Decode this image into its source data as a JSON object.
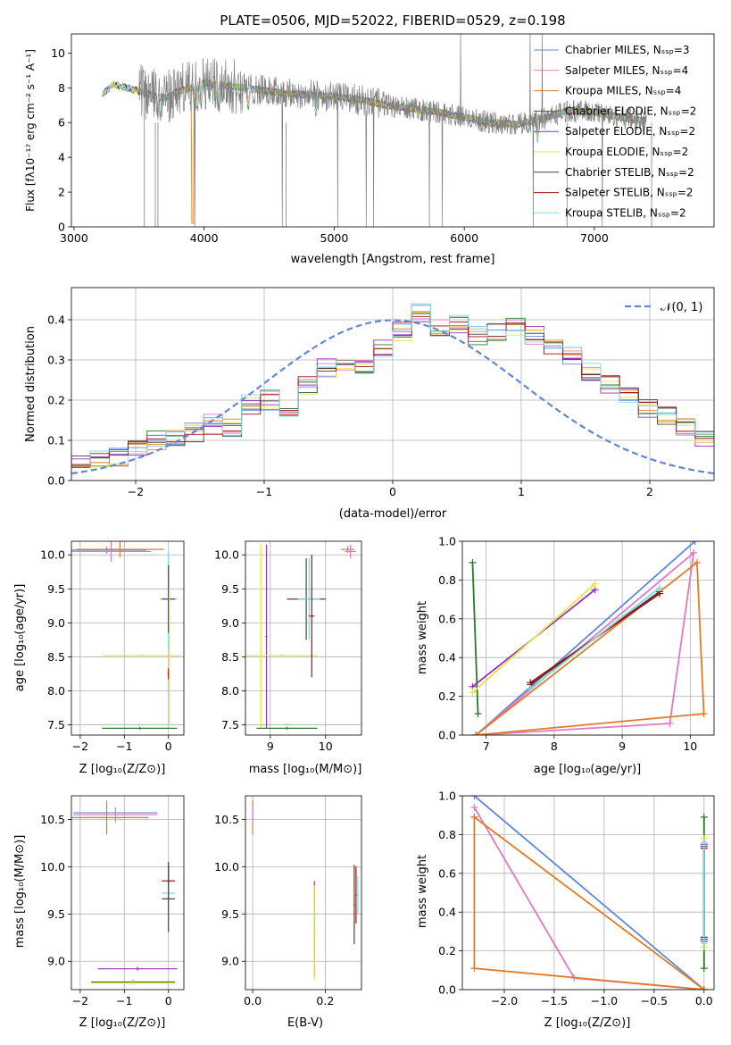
{
  "colors": [
    "#5f87d9",
    "#e377c2",
    "#e07b25",
    "#2a7a2a",
    "#9a2fbf",
    "#e6e640",
    "#444444",
    "#a50f0f",
    "#80d8e0"
  ],
  "spectrum": {
    "title": "PLATE=0506, MJD=52022, FIBERID=0529, z=0.198",
    "xlabel": "wavelength [Angstrom, rest frame]",
    "ylabel": "Flux [fλ10⁻¹⁷ erg cm⁻² s⁻¹ A⁻¹]",
    "xticks": [
      "3000",
      "4000",
      "5000",
      "6000",
      "7000"
    ],
    "yticks": [
      "0",
      "2",
      "4",
      "6",
      "8",
      "10"
    ],
    "legend": [
      "Chabrier MILES, Nₛₛₚ=3",
      "Salpeter MILES, Nₛₛₚ=4",
      "Kroupa MILES, Nₛₛₚ=4",
      "Chabrier ELODIE, Nₛₛₚ=2",
      "Salpeter ELODIE, Nₛₛₚ=2",
      "Kroupa ELODIE, Nₛₛₚ=2",
      "Chabrier STELIB, Nₛₛₚ=2",
      "Salpeter STELIB, Nₛₛₚ=2",
      "Kroupa STELIB, Nₛₛₚ=2"
    ]
  },
  "histogram": {
    "xlabel": "(data-model)/error",
    "ylabel": "Normed distribution",
    "xticks": [
      "−2",
      "−1",
      "0",
      "1",
      "2"
    ],
    "yticks": [
      "0.0",
      "0.1",
      "0.2",
      "0.3",
      "0.4"
    ],
    "legend": "𝒩(0, 1)"
  },
  "age_z": {
    "ylabel": "age  [log₁₀(age/yr)]",
    "xlabel": "Z [log₁₀(Z/Z⊙)]",
    "xticks": [
      "−2",
      "−1",
      "0"
    ],
    "yticks": [
      "7.5",
      "8.0",
      "8.5",
      "9.0",
      "9.5",
      "10.0"
    ]
  },
  "age_mass": {
    "xlabel": "mass [log₁₀(M/M⊙)]",
    "xticks": [
      "9",
      "10"
    ],
    "yticks": [
      "7.5",
      "8.0",
      "8.5",
      "9.0",
      "9.5",
      "10.0"
    ]
  },
  "mw_age": {
    "xlabel": "age  [log₁₀(age/yr)]",
    "ylabel": "mass weight",
    "xticks": [
      "7",
      "8",
      "9",
      "10"
    ],
    "yticks": [
      "0.0",
      "0.2",
      "0.4",
      "0.6",
      "0.8",
      "1.0"
    ]
  },
  "mass_z": {
    "ylabel": "mass [log₁₀(M/M⊙)]",
    "xlabel": "Z [log₁₀(Z/Z⊙)]",
    "xticks": [
      "−2",
      "−1",
      "0"
    ],
    "yticks": [
      "9.0",
      "9.5",
      "10.0",
      "10.5"
    ]
  },
  "mass_ebv": {
    "xlabel": "E(B-V)",
    "xticks": [
      "0.0",
      "0.2"
    ],
    "yticks": [
      "9.0",
      "9.5",
      "10.0",
      "10.5"
    ]
  },
  "mw_z": {
    "xlabel": "Z [log₁₀(Z/Z⊙)]",
    "ylabel": "mass weight",
    "xticks": [
      "−2.0",
      "−1.5",
      "−1.0",
      "−0.5",
      "0.0"
    ],
    "yticks": [
      "0.0",
      "0.2",
      "0.4",
      "0.6",
      "0.8",
      "1.0"
    ]
  },
  "chart_data": [
    {
      "type": "line",
      "title": "PLATE=0506, MJD=52022, FIBERID=0529, z=0.198",
      "xlabel": "wavelength [Angstrom, rest frame]",
      "ylabel": "Flux [fλ10⁻¹⁷ erg cm⁻² s⁻¹ A⁻¹]",
      "xlim": [
        2980,
        7920
      ],
      "ylim": [
        0,
        11.1
      ],
      "continuum_knots": {
        "x": [
          3220,
          3300,
          3400,
          3500,
          3600,
          3700,
          3800,
          3900,
          4000,
          4100,
          4200,
          4400,
          4600,
          4800,
          5000,
          5200,
          5400,
          5600,
          5800,
          6000,
          6200,
          6400,
          6600,
          6800,
          7000,
          7200,
          7400
        ],
        "y": [
          7.6,
          8.2,
          8.0,
          7.8,
          7.6,
          7.4,
          7.8,
          8.0,
          8.3,
          8.2,
          8.1,
          7.9,
          7.7,
          7.6,
          7.5,
          7.3,
          7.0,
          6.8,
          6.6,
          6.3,
          6.0,
          5.9,
          6.2,
          6.7,
          6.6,
          6.3,
          6.1
        ]
      },
      "series": [
        {
          "name": "Chabrier MILES, Nₛₛₚ=3"
        },
        {
          "name": "Salpeter MILES, Nₛₛₚ=4"
        },
        {
          "name": "Kroupa MILES, Nₛₛₚ=4"
        },
        {
          "name": "Chabrier ELODIE, Nₛₛₚ=2"
        },
        {
          "name": "Salpeter ELODIE, Nₛₛₚ=2"
        },
        {
          "name": "Kroupa ELODIE, Nₛₛₚ=2"
        },
        {
          "name": "Chabrier STELIB, Nₛₛₚ=2"
        },
        {
          "name": "Salpeter STELIB, Nₛₛₚ=2"
        },
        {
          "name": "Kroupa STELIB, Nₛₛₚ=2"
        }
      ]
    },
    {
      "type": "histogram",
      "xlabel": "(data-model)/error",
      "ylabel": "Normed distribution",
      "xlim": [
        -2.5,
        2.5
      ],
      "ylim": [
        0,
        0.48
      ],
      "bin_edges_range": [
        -2.5,
        2.5
      ],
      "n_bins": 34,
      "values": [
        0.04,
        0.05,
        0.06,
        0.08,
        0.1,
        0.11,
        0.12,
        0.14,
        0.13,
        0.19,
        0.2,
        0.17,
        0.24,
        0.28,
        0.3,
        0.29,
        0.33,
        0.37,
        0.42,
        0.38,
        0.39,
        0.36,
        0.37,
        0.38,
        0.36,
        0.34,
        0.31,
        0.27,
        0.24,
        0.21,
        0.18,
        0.16,
        0.13,
        0.11
      ],
      "reference": {
        "name": "𝒩(0, 1)",
        "type": "gaussian",
        "mu": 0,
        "sigma": 1
      }
    },
    {
      "type": "scatter",
      "xlabel": "Z [log₁₀(Z/Z⊙)]",
      "ylabel": "age  [log₁₀(age/yr)]",
      "xlim": [
        -2.2,
        0.35
      ],
      "ylim": [
        7.35,
        10.2
      ],
      "errorbars": [
        {
          "c": 0,
          "x": -1.4,
          "y": 10.07,
          "xerr": 0.9,
          "yerr": 0.05
        },
        {
          "c": 1,
          "x": -1.3,
          "y": 10.05,
          "xerr": 0.9,
          "yerr": 0.15
        },
        {
          "c": 2,
          "x": -1.1,
          "y": 10.08,
          "xerr": 1.0,
          "yerr": 0.12
        },
        {
          "c": 5,
          "x": -0.6,
          "y": 8.52,
          "xerr": 0.9,
          "yerr": 0.02
        },
        {
          "c": 3,
          "x": -0.65,
          "y": 7.45,
          "xerr": 0.85,
          "yerr": 0.02
        },
        {
          "c": 7,
          "x": 0.0,
          "y": 8.25,
          "xerr": 0.02,
          "yerr": 0.08
        },
        {
          "c": 8,
          "x": 0.0,
          "y": 9.35,
          "xerr": 0.2,
          "yerr": 0.7
        },
        {
          "c": 6,
          "x": 0.0,
          "y": 9.35,
          "xerr": 0.15,
          "yerr": 0.5
        },
        {
          "c": 5,
          "x": 0.02,
          "y": 8.52,
          "xerr": 0.02,
          "yerr": 1.0
        }
      ]
    },
    {
      "type": "scatter",
      "xlabel": "mass [log₁₀(M/M⊙)]",
      "xlim": [
        8.55,
        10.65
      ],
      "ylim": [
        7.35,
        10.2
      ],
      "errorbars": [
        {
          "c": 5,
          "x": 8.83,
          "y": 8.8,
          "xerr": 0.02,
          "yerr": 1.35
        },
        {
          "c": 4,
          "x": 8.93,
          "y": 8.8,
          "xerr": 0.02,
          "yerr": 1.35
        },
        {
          "c": 5,
          "x": 9.2,
          "y": 8.52,
          "xerr": 0.65,
          "yerr": 0.02
        },
        {
          "c": 3,
          "x": 9.3,
          "y": 7.45,
          "xerr": 0.55,
          "yerr": 0.02
        },
        {
          "c": 6,
          "x": 9.65,
          "y": 9.35,
          "xerr": 0.35,
          "yerr": 0.6
        },
        {
          "c": 8,
          "x": 9.7,
          "y": 9.35,
          "xerr": 0.2,
          "yerr": 0.6
        },
        {
          "c": 7,
          "x": 9.75,
          "y": 9.1,
          "xerr": 0.05,
          "yerr": 0.9
        },
        {
          "c": 2,
          "x": 10.4,
          "y": 10.08,
          "xerr": 0.12,
          "yerr": 0.05
        },
        {
          "c": 1,
          "x": 10.45,
          "y": 10.05,
          "xerr": 0.1,
          "yerr": 0.1
        }
      ]
    },
    {
      "type": "line",
      "xlabel": "age  [log₁₀(age/yr)]",
      "ylabel": "mass weight",
      "xlim": [
        6.65,
        10.35
      ],
      "ylim": [
        0,
        1.0
      ],
      "series": [
        {
          "c": 0,
          "x": [
            6.85,
            10.07
          ],
          "y": [
            0.0,
            1.0
          ]
        },
        {
          "c": 1,
          "x": [
            6.85,
            9.7,
            10.05,
            6.85
          ],
          "y": [
            0.0,
            0.06,
            0.94,
            0.0
          ]
        },
        {
          "c": 2,
          "x": [
            6.85,
            10.1,
            10.2,
            6.85
          ],
          "y": [
            0.0,
            0.89,
            0.11,
            0.0
          ]
        },
        {
          "c": 3,
          "x": [
            6.8,
            6.88
          ],
          "y": [
            0.89,
            0.11
          ]
        },
        {
          "c": 4,
          "x": [
            6.8,
            8.6
          ],
          "y": [
            0.25,
            0.75
          ]
        },
        {
          "c": 5,
          "x": [
            6.8,
            8.6
          ],
          "y": [
            0.22,
            0.78
          ]
        },
        {
          "c": 6,
          "x": [
            7.65,
            9.55
          ],
          "y": [
            0.26,
            0.74
          ]
        },
        {
          "c": 7,
          "x": [
            7.65,
            9.55
          ],
          "y": [
            0.27,
            0.73
          ]
        },
        {
          "c": 8,
          "x": [
            7.65,
            9.55
          ],
          "y": [
            0.24,
            0.76
          ]
        }
      ]
    },
    {
      "type": "scatter",
      "xlabel": "Z [log₁₀(Z/Z⊙)]",
      "ylabel": "mass [log₁₀(M/M⊙)]",
      "xlim": [
        -2.2,
        0.35
      ],
      "ylim": [
        8.7,
        10.75
      ],
      "errorbars": [
        {
          "c": 0,
          "x": -1.2,
          "y": 10.57,
          "xerr": 0.95,
          "yerr": 0.02
        },
        {
          "c": 1,
          "x": -1.2,
          "y": 10.55,
          "xerr": 0.95,
          "yerr": 0.08
        },
        {
          "c": 2,
          "x": -1.4,
          "y": 10.52,
          "xerr": 0.95,
          "yerr": 0.18
        },
        {
          "c": 4,
          "x": -0.7,
          "y": 8.92,
          "xerr": 0.9,
          "yerr": 0.02
        },
        {
          "c": 3,
          "x": -0.8,
          "y": 8.78,
          "xerr": 0.95,
          "yerr": 0.02
        },
        {
          "c": 5,
          "x": -0.8,
          "y": 8.77,
          "xerr": 0.95,
          "yerr": 0.02
        },
        {
          "c": 7,
          "x": 0.0,
          "y": 9.85,
          "xerr": 0.15,
          "yerr": 0.2
        },
        {
          "c": 8,
          "x": 0.0,
          "y": 9.72,
          "xerr": 0.15,
          "yerr": 0.1
        },
        {
          "c": 6,
          "x": 0.0,
          "y": 9.66,
          "xerr": 0.15,
          "yerr": 0.35
        }
      ]
    },
    {
      "type": "scatter",
      "xlabel": "E(B-V)",
      "xlim": [
        -0.02,
        0.3
      ],
      "ylim": [
        8.7,
        10.75
      ],
      "errorbars": [
        {
          "c": 2,
          "x": 0.0,
          "y": 10.52,
          "xerr": 0.002,
          "yerr": 0.18
        },
        {
          "c": 1,
          "x": 0.0,
          "y": 10.55,
          "xerr": 0.002,
          "yerr": 0.1
        },
        {
          "c": 4,
          "x": 0.17,
          "y": 9.35,
          "xerr": 0.002,
          "yerr": 0.5
        },
        {
          "c": 5,
          "x": 0.17,
          "y": 9.3,
          "xerr": 0.002,
          "yerr": 0.5
        },
        {
          "c": 6,
          "x": 0.28,
          "y": 9.6,
          "xerr": 0.002,
          "yerr": 0.42
        },
        {
          "c": 7,
          "x": 0.285,
          "y": 9.7,
          "xerr": 0.002,
          "yerr": 0.3
        },
        {
          "c": 8,
          "x": 0.29,
          "y": 9.7,
          "xerr": 0.002,
          "yerr": 0.2
        }
      ]
    },
    {
      "type": "line",
      "xlabel": "Z [log₁₀(Z/Z⊙)]",
      "ylabel": "mass weight",
      "xlim": [
        -2.42,
        0.1
      ],
      "ylim": [
        0,
        1.0
      ],
      "series": [
        {
          "c": 0,
          "x": [
            -2.3,
            0.0
          ],
          "y": [
            1.0,
            0.0
          ]
        },
        {
          "c": 1,
          "x": [
            -2.3,
            -1.3,
            0.0
          ],
          "y": [
            0.94,
            0.06,
            0.0
          ]
        },
        {
          "c": 2,
          "x": [
            -2.3,
            -2.3,
            0.0,
            -2.3
          ],
          "y": [
            0.89,
            0.11,
            0.0,
            0.89
          ]
        },
        {
          "c": 3,
          "x": [
            0.0,
            0.0
          ],
          "y": [
            0.89,
            0.11
          ]
        },
        {
          "c": 4,
          "x": [
            0.0,
            0.0
          ],
          "y": [
            0.25,
            0.75
          ]
        },
        {
          "c": 5,
          "x": [
            0.0,
            0.0
          ],
          "y": [
            0.22,
            0.78
          ]
        },
        {
          "c": 6,
          "x": [
            0.0,
            0.0
          ],
          "y": [
            0.26,
            0.74
          ]
        },
        {
          "c": 7,
          "x": [
            0.0,
            0.0
          ],
          "y": [
            0.27,
            0.73
          ]
        },
        {
          "c": 8,
          "x": [
            0.0,
            0.0
          ],
          "y": [
            0.24,
            0.76
          ]
        }
      ]
    }
  ]
}
